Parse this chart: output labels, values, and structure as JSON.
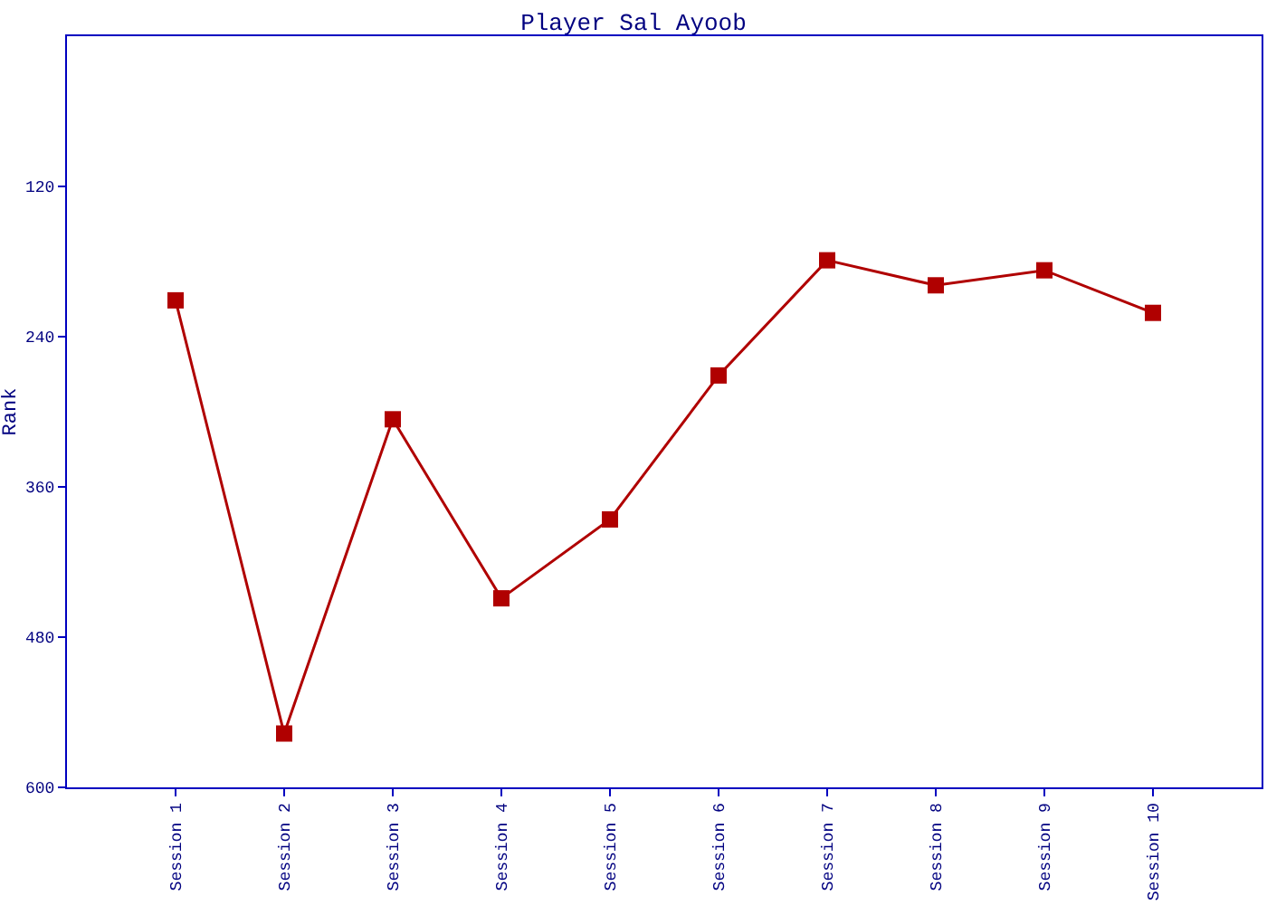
{
  "chart_data": {
    "type": "line",
    "title": "Player Sal Ayoob",
    "ylabel": "Rank",
    "categories": [
      "Session 1",
      "Session 2",
      "Session 3",
      "Session 4",
      "Session 5",
      "Session 6",
      "Session 7",
      "Session 8",
      "Session 9",
      "Session 10"
    ],
    "series": [
      {
        "color": "#b00000",
        "values": [
          211,
          557,
          306,
          449,
          386,
          271,
          179,
          199,
          187,
          221
        ]
      }
    ],
    "ylim": [
      600,
      0
    ],
    "yticks": [
      120,
      240,
      360,
      480,
      600
    ],
    "legend": false,
    "marker": "square",
    "line_style": "solid"
  }
}
